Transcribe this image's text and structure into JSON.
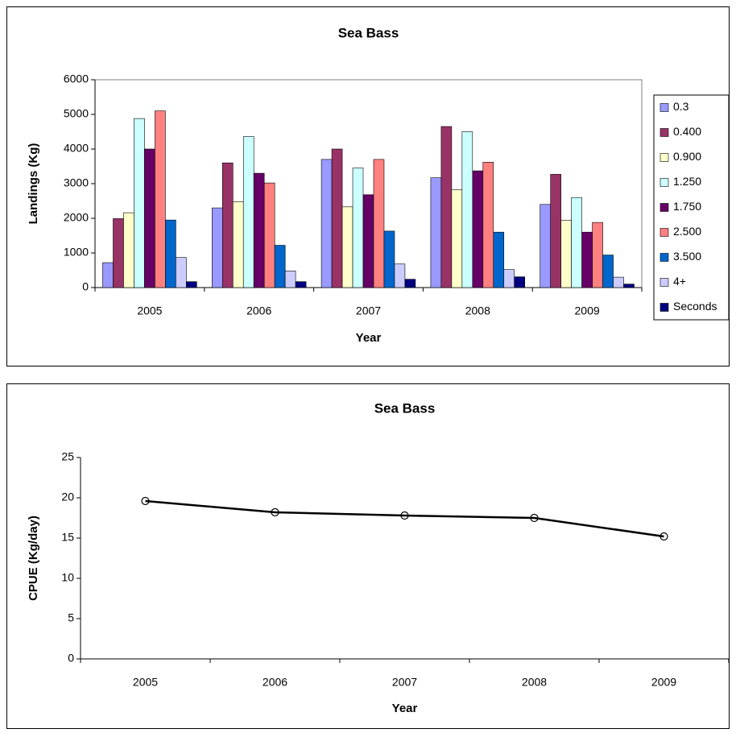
{
  "chart_data": [
    {
      "type": "bar",
      "title": "Sea Bass",
      "x_label": "Year",
      "y_label": "Landings (Kg)",
      "categories": [
        "2005",
        "2006",
        "2007",
        "2008",
        "2009"
      ],
      "series": [
        {
          "name": "0.3",
          "color": "#9999ff",
          "values": [
            720,
            2300,
            3700,
            3170,
            2400
          ]
        },
        {
          "name": "0.400",
          "color": "#993366",
          "values": [
            1990,
            3600,
            4000,
            4650,
            3270
          ]
        },
        {
          "name": "0.900",
          "color": "#ffffcc",
          "values": [
            2160,
            2480,
            2330,
            2820,
            1940
          ]
        },
        {
          "name": "1.250",
          "color": "#ccffff",
          "values": [
            4880,
            4360,
            3450,
            4500,
            2600
          ]
        },
        {
          "name": "1.750",
          "color": "#660066",
          "values": [
            4000,
            3300,
            2680,
            3370,
            1600
          ]
        },
        {
          "name": "2.500",
          "color": "#ff8080",
          "values": [
            5100,
            3020,
            3700,
            3620,
            1880
          ]
        },
        {
          "name": "3.500",
          "color": "#0066cc",
          "values": [
            1950,
            1220,
            1630,
            1600,
            940
          ]
        },
        {
          "name": "4+",
          "color": "#ccccff",
          "values": [
            870,
            480,
            680,
            520,
            300
          ]
        },
        {
          "name": "Seconds",
          "color": "#000080",
          "values": [
            170,
            170,
            240,
            310,
            100
          ]
        }
      ],
      "ylim": [
        0,
        6000
      ],
      "yticks": [
        0,
        1000,
        2000,
        3000,
        4000,
        5000,
        6000
      ],
      "legend": "right"
    },
    {
      "type": "line",
      "title": "Sea Bass",
      "x_label": "Year",
      "y_label": "CPUE  (Kg/day)",
      "categories": [
        "2005",
        "2006",
        "2007",
        "2008",
        "2009"
      ],
      "series": [
        {
          "name": "CPUE",
          "color": "#000000",
          "values": [
            19.6,
            18.2,
            17.8,
            17.5,
            15.2
          ]
        }
      ],
      "ylim": [
        0,
        25
      ],
      "yticks": [
        0,
        5,
        10,
        15,
        20,
        25
      ]
    }
  ]
}
